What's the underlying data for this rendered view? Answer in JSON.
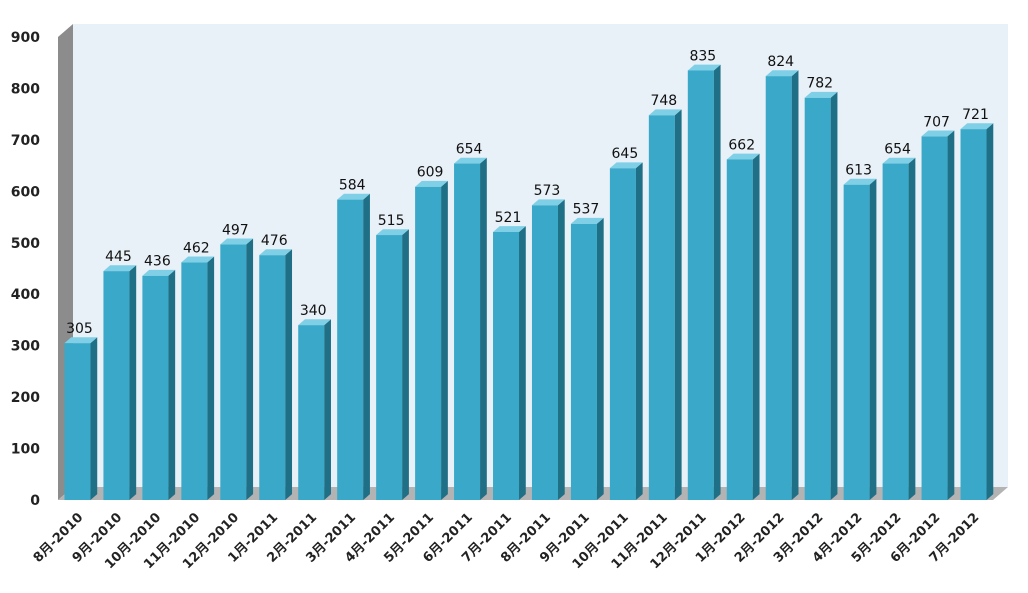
{
  "chart_data": {
    "type": "bar",
    "categories": [
      "8月-2010",
      "9月-2010",
      "10月-2010",
      "11月-2010",
      "12月-2010",
      "1月-2011",
      "2月-2011",
      "3月-2011",
      "4月-2011",
      "5月-2011",
      "6月-2011",
      "7月-2011",
      "8月-2011",
      "9月-2011",
      "10月-2011",
      "11月-2011",
      "12月-2011",
      "1月-2012",
      "2月-2012",
      "3月-2012",
      "4月-2012",
      "5月-2012",
      "6月-2012",
      "7月-2012"
    ],
    "values": [
      305,
      445,
      436,
      462,
      497,
      476,
      340,
      584,
      515,
      609,
      654,
      521,
      573,
      537,
      645,
      748,
      835,
      662,
      824,
      782,
      613,
      654,
      707,
      721
    ],
    "title": "",
    "xlabel": "",
    "ylabel": "",
    "ylim": [
      0,
      900
    ],
    "yticks": [
      0,
      100,
      200,
      300,
      400,
      500,
      600,
      700,
      800,
      900
    ],
    "grid": false,
    "legend": "none",
    "bar_color": "#3aa8c8",
    "bar_side_color": "#1f6f86",
    "bar_top_color": "#7fd0e6",
    "wall_color": "#e8f0f8",
    "wall_side_color": "#8c8c8c",
    "floor_color": "#b3b3b3"
  }
}
